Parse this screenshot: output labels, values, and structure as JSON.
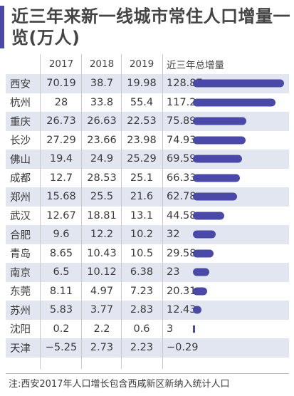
{
  "title": "近三年来新一线城市常住人口增量一览(万人)",
  "colors": {
    "accent": "#4a49a8",
    "stripe": "#e2e6f1"
  },
  "footnote": "注:西安2017年人口增长包含西咸新区新纳入统计人口",
  "chart_data": {
    "type": "table",
    "columns": [
      "",
      "2017",
      "2018",
      "2019",
      "近三年总增量"
    ],
    "rows": [
      {
        "city": "西安",
        "y2017": "70.19",
        "y2018": "38.7",
        "y2019": "19.98",
        "total": "128.87",
        "total_value": 128.87
      },
      {
        "city": "杭州",
        "y2017": "28",
        "y2018": "33.8",
        "y2019": "55.4",
        "total": "117.2",
        "total_value": 117.2
      },
      {
        "city": "重庆",
        "y2017": "26.73",
        "y2018": "26.63",
        "y2019": "22.53",
        "total": "75.89",
        "total_value": 75.89
      },
      {
        "city": "长沙",
        "y2017": "27.29",
        "y2018": "23.66",
        "y2019": "23.98",
        "total": "74.93",
        "total_value": 74.93
      },
      {
        "city": "佛山",
        "y2017": "19.4",
        "y2018": "24.9",
        "y2019": "25.29",
        "total": "69.59",
        "total_value": 69.59
      },
      {
        "city": "成都",
        "y2017": "12.7",
        "y2018": "28.53",
        "y2019": "25.1",
        "total": "66.33",
        "total_value": 66.33
      },
      {
        "city": "郑州",
        "y2017": "15.68",
        "y2018": "25.5",
        "y2019": "21.6",
        "total": "62.78",
        "total_value": 62.78
      },
      {
        "city": "武汉",
        "y2017": "12.67",
        "y2018": "18.81",
        "y2019": "13.1",
        "total": "44.58",
        "total_value": 44.58
      },
      {
        "city": "合肥",
        "y2017": "9.6",
        "y2018": "12.2",
        "y2019": "10.2",
        "total": "32",
        "total_value": 32
      },
      {
        "city": "青岛",
        "y2017": "8.65",
        "y2018": "10.43",
        "y2019": "10.5",
        "total": "29.58",
        "total_value": 29.58
      },
      {
        "city": "南京",
        "y2017": "6.5",
        "y2018": "10.12",
        "y2019": "6.38",
        "total": "23",
        "total_value": 23
      },
      {
        "city": "东莞",
        "y2017": "8.11",
        "y2018": "4.97",
        "y2019": "7.23",
        "total": "20.31",
        "total_value": 20.31
      },
      {
        "city": "苏州",
        "y2017": "5.83",
        "y2018": "3.77",
        "y2019": "2.83",
        "total": "12.43",
        "total_value": 12.43
      },
      {
        "city": "沈阳",
        "y2017": "0.2",
        "y2018": "2.2",
        "y2019": "0.6",
        "total": "3",
        "total_value": 3
      },
      {
        "city": "天津",
        "y2017": "−5.25",
        "y2018": "2.73",
        "y2019": "2.23",
        "total": "−0.29",
        "total_value": -0.29
      }
    ],
    "bar_max": 128.87
  }
}
